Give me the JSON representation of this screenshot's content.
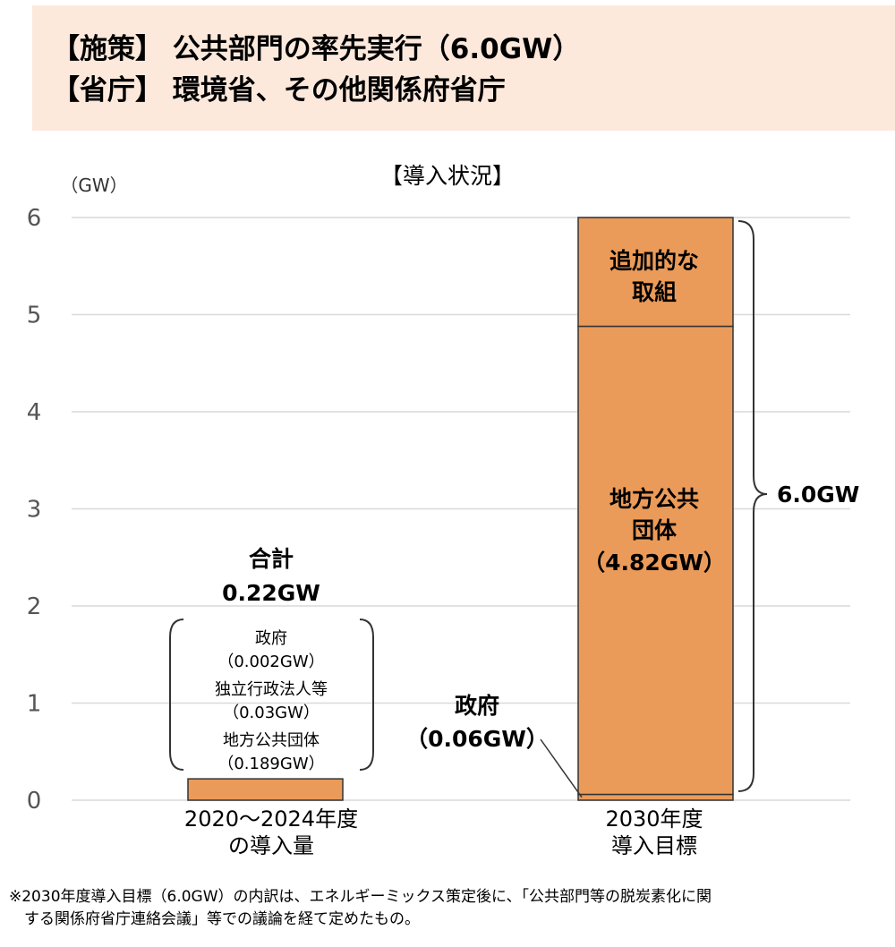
{
  "header": {
    "line1": "【施策】 公共部門の率先実行（6.0GW）",
    "line2": "【省庁】 環境省、その他関係府省庁"
  },
  "chart_data": {
    "type": "bar",
    "title": "【導入状況】",
    "ylabel": "（GW）",
    "ylim": [
      0,
      6
    ],
    "yticks": [
      "0",
      "1",
      "2",
      "3",
      "4",
      "5",
      "6"
    ],
    "grid": true,
    "bar_color": "#eb9b59",
    "categories": [
      {
        "line1": "2020～2024年度",
        "line2": "の導入量"
      },
      {
        "line1": "2030年度",
        "line2": "導入目標"
      }
    ],
    "bar_left": {
      "value": 0.22,
      "total_title": "合計",
      "total_value": "0.22GW",
      "breakdown": [
        {
          "name": "政府",
          "value": "（0.002GW）"
        },
        {
          "name": "独立行政法人等",
          "value": "（0.03GW）"
        },
        {
          "name": "地方公共団体",
          "value": "（0.189GW）"
        }
      ]
    },
    "bar_right": {
      "total": 6.0,
      "total_label": "6.0GW",
      "segments": [
        {
          "value": 0.06,
          "label1": "政府",
          "label2": "（0.06GW）"
        },
        {
          "value": 4.82,
          "label1": "地方公共",
          "label2": "団体",
          "label3": "（4.82GW）"
        },
        {
          "value": 1.12,
          "label1": "追加的な",
          "label2": "取組"
        }
      ]
    }
  },
  "footnote": {
    "line1": "※2030年度導入目標（6.0GW）の内訳は、エネルギーミックス策定後に、「公共部門等の脱炭素化に関",
    "line2": "　する関係府省庁連絡会議」等での議論を経て定めたもの。"
  }
}
